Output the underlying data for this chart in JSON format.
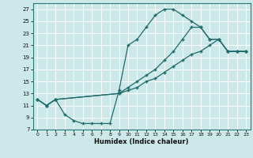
{
  "xlabel": "Humidex (Indice chaleur)",
  "bg_color": "#cce8e8",
  "line_color": "#1e6b6b",
  "grid_color": "#b0d0d0",
  "xlim": [
    -0.5,
    23.5
  ],
  "ylim": [
    7,
    28
  ],
  "yticks": [
    7,
    9,
    11,
    13,
    15,
    17,
    19,
    21,
    23,
    25,
    27
  ],
  "xticks": [
    0,
    1,
    2,
    3,
    4,
    5,
    6,
    7,
    8,
    9,
    10,
    11,
    12,
    13,
    14,
    15,
    16,
    17,
    18,
    19,
    20,
    21,
    22,
    23
  ],
  "line1_x": [
    0,
    1,
    2,
    3,
    4,
    5,
    6,
    7,
    8,
    9,
    10,
    11,
    12,
    13,
    14,
    15,
    16,
    17,
    18,
    19,
    20,
    21,
    22,
    23
  ],
  "line1_y": [
    12,
    11,
    12,
    9.5,
    8.5,
    8,
    8,
    8,
    8,
    13.5,
    21,
    22,
    24,
    26,
    27,
    27,
    26,
    25,
    24,
    22,
    22,
    20,
    20,
    20
  ],
  "line2_x": [
    0,
    1,
    2,
    9,
    10,
    11,
    12,
    13,
    14,
    15,
    16,
    17,
    18,
    19,
    20,
    21,
    22,
    23
  ],
  "line2_y": [
    12,
    11,
    12,
    13,
    14,
    15,
    16,
    17,
    18.5,
    20,
    22,
    24,
    24,
    22,
    22,
    20,
    20,
    20
  ],
  "line3_x": [
    0,
    1,
    2,
    9,
    10,
    11,
    12,
    13,
    14,
    15,
    16,
    17,
    18,
    19,
    20,
    21,
    22,
    23
  ],
  "line3_y": [
    12,
    11,
    12,
    13,
    13.5,
    14,
    15,
    15.5,
    16.5,
    17.5,
    18.5,
    19.5,
    20,
    21,
    22,
    20,
    20,
    20
  ]
}
